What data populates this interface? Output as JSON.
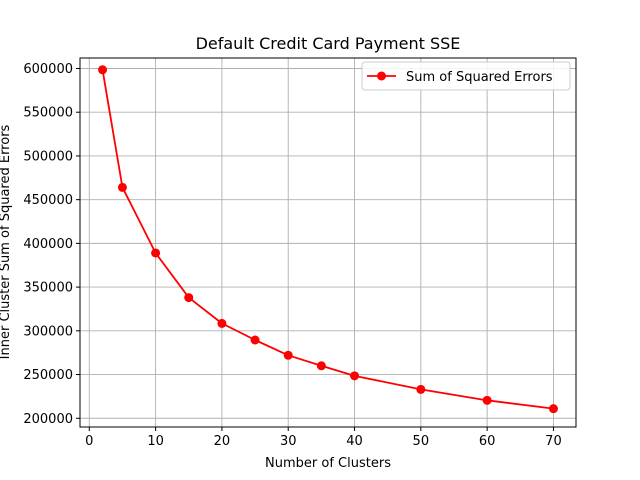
{
  "chart_data": {
    "type": "line",
    "title": "Default Credit Card Payment SSE",
    "xlabel": "Number of Clusters",
    "ylabel": "Inner Cluster Sum of Squared Errors",
    "xlim": [
      -1.4,
      73.4
    ],
    "ylim": [
      190000,
      612000
    ],
    "xticks": [
      0,
      10,
      20,
      30,
      40,
      50,
      60,
      70
    ],
    "yticks": [
      200000,
      250000,
      300000,
      350000,
      400000,
      450000,
      500000,
      550000,
      600000
    ],
    "grid": true,
    "legend_position": "top-right",
    "series": [
      {
        "name": "Sum of Squared Errors",
        "color": "#ff0000",
        "marker": "circle",
        "x": [
          2,
          5,
          10,
          15,
          20,
          25,
          30,
          35,
          40,
          50,
          60,
          70
        ],
        "y": [
          598500,
          464000,
          389000,
          338000,
          308500,
          289500,
          272000,
          260000,
          248500,
          233000,
          220500,
          211000
        ]
      }
    ]
  }
}
